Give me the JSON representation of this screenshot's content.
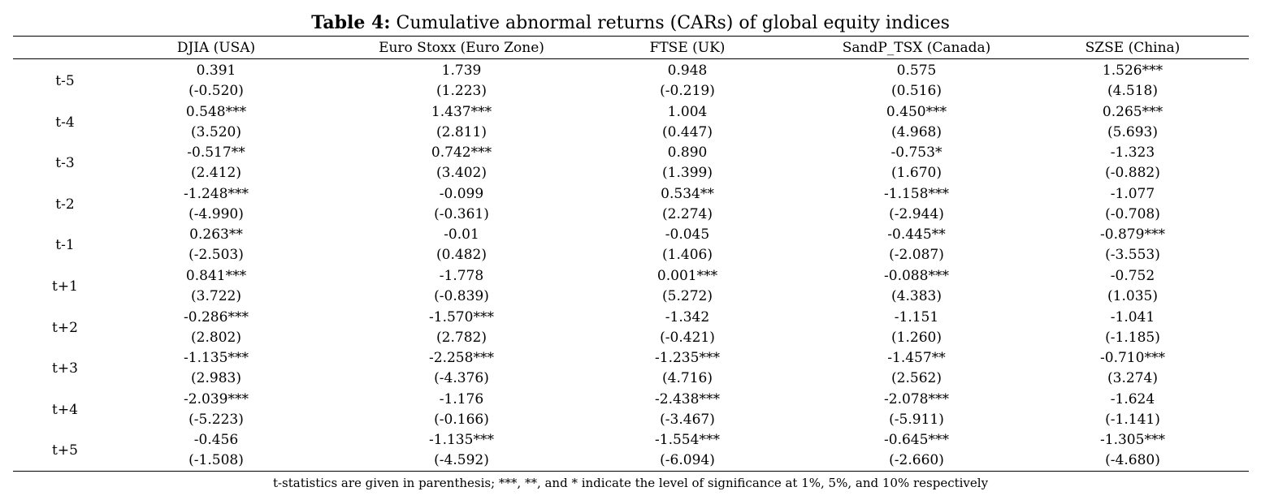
{
  "title": {
    "label": "Table 4:",
    "text": "Cumulative abnormal returns (CARs) of global equity indices"
  },
  "columns": [
    "DJIA (USA)",
    "Euro Stoxx (Euro Zone)",
    "FTSE (UK)",
    "SandP_TSX (Canada)",
    "SZSE (China)"
  ],
  "rows": [
    {
      "label": "t-5",
      "estimates": [
        "0.391",
        "1.739",
        "0.948",
        "0.575",
        "1.526***"
      ],
      "tstats": [
        "(-0.520)",
        "(1.223)",
        "(-0.219)",
        "(0.516)",
        "(4.518)"
      ]
    },
    {
      "label": "t-4",
      "estimates": [
        "0.548***",
        "1.437***",
        "1.004",
        "0.450***",
        "0.265***"
      ],
      "tstats": [
        "(3.520)",
        "(2.811)",
        "(0.447)",
        "(4.968)",
        "(5.693)"
      ]
    },
    {
      "label": "t-3",
      "estimates": [
        "-0.517**",
        "0.742***",
        "0.890",
        "-0.753*",
        "-1.323"
      ],
      "tstats": [
        "(2.412)",
        "(3.402)",
        "(1.399)",
        "(1.670)",
        "(-0.882)"
      ]
    },
    {
      "label": "t-2",
      "estimates": [
        "-1.248***",
        "-0.099",
        "0.534**",
        "-1.158***",
        "-1.077"
      ],
      "tstats": [
        "(-4.990)",
        "(-0.361)",
        "(2.274)",
        "(-2.944)",
        "(-0.708)"
      ]
    },
    {
      "label": "t-1",
      "estimates": [
        "0.263**",
        "-0.01",
        "-0.045",
        "-0.445**",
        "-0.879***"
      ],
      "tstats": [
        "(-2.503)",
        "(0.482)",
        "(1.406)",
        "(-2.087)",
        "(-3.553)"
      ]
    },
    {
      "label": "t+1",
      "estimates": [
        "0.841***",
        "-1.778",
        "0.001***",
        "-0.088***",
        "-0.752"
      ],
      "tstats": [
        "(3.722)",
        "(-0.839)",
        "(5.272)",
        "(4.383)",
        "(1.035)"
      ]
    },
    {
      "label": "t+2",
      "estimates": [
        "-0.286***",
        "-1.570***",
        "-1.342",
        "-1.151",
        "-1.041"
      ],
      "tstats": [
        "(2.802)",
        "(2.782)",
        "(-0.421)",
        "(1.260)",
        "(-1.185)"
      ]
    },
    {
      "label": "t+3",
      "estimates": [
        "-1.135***",
        "-2.258***",
        "-1.235***",
        "-1.457**",
        "-0.710***"
      ],
      "tstats": [
        "(2.983)",
        "(-4.376)",
        "(4.716)",
        "(2.562)",
        "(3.274)"
      ]
    },
    {
      "label": "t+4",
      "estimates": [
        "-2.039***",
        "-1.176",
        "-2.438***",
        "-2.078***",
        "-1.624"
      ],
      "tstats": [
        "(-5.223)",
        "(-0.166)",
        "(-3.467)",
        "(-5.911)",
        "(-1.141)"
      ]
    },
    {
      "label": "t+5",
      "estimates": [
        "-0.456",
        "-1.135***",
        "-1.554***",
        "-0.645***",
        "-1.305***"
      ],
      "tstats": [
        "(-1.508)",
        "(-4.592)",
        "(-6.094)",
        "(-2.660)",
        "(-4.680)"
      ]
    }
  ],
  "footnote": "t-statistics are given in parenthesis; ***, **, and * indicate the level of significance at 1%, 5%, and 10% respectively"
}
